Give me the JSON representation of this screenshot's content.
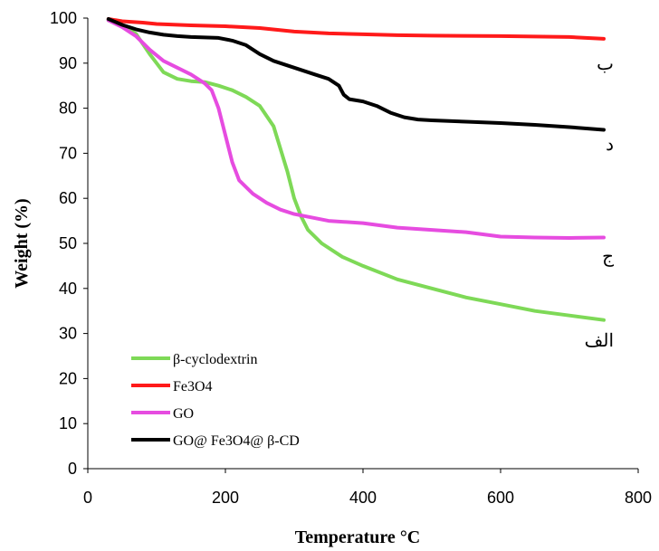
{
  "chart_data": {
    "type": "line",
    "xlabel": "Temperature °C",
    "ylabel": "Weight (%)",
    "xlim": [
      0,
      800
    ],
    "ylim": [
      0,
      100
    ],
    "xticks": [
      0,
      200,
      400,
      600,
      800
    ],
    "yticks": [
      0,
      10,
      20,
      30,
      40,
      50,
      60,
      70,
      80,
      90,
      100
    ],
    "grid": false,
    "legend_position": "bottom-left",
    "series": [
      {
        "name": "β-cyclodextrin",
        "color": "#7ED957",
        "end_label": "الف",
        "points": [
          [
            30,
            99.5
          ],
          [
            50,
            98.5
          ],
          [
            70,
            96.5
          ],
          [
            90,
            92
          ],
          [
            110,
            88
          ],
          [
            130,
            86.5
          ],
          [
            150,
            86
          ],
          [
            170,
            85.8
          ],
          [
            190,
            85
          ],
          [
            210,
            84
          ],
          [
            230,
            82.5
          ],
          [
            250,
            80.5
          ],
          [
            270,
            76
          ],
          [
            290,
            66
          ],
          [
            300,
            60
          ],
          [
            310,
            56
          ],
          [
            320,
            53
          ],
          [
            340,
            50
          ],
          [
            370,
            47
          ],
          [
            400,
            45
          ],
          [
            450,
            42
          ],
          [
            500,
            40
          ],
          [
            550,
            38
          ],
          [
            600,
            36.5
          ],
          [
            650,
            35
          ],
          [
            700,
            34
          ],
          [
            750,
            33
          ]
        ]
      },
      {
        "name": "Fe3O4",
        "color": "#FF1A1A",
        "end_label": "ب",
        "points": [
          [
            30,
            99.8
          ],
          [
            50,
            99.3
          ],
          [
            80,
            99
          ],
          [
            100,
            98.7
          ],
          [
            150,
            98.4
          ],
          [
            200,
            98.2
          ],
          [
            250,
            97.8
          ],
          [
            300,
            97
          ],
          [
            350,
            96.6
          ],
          [
            400,
            96.4
          ],
          [
            450,
            96.2
          ],
          [
            500,
            96.1
          ],
          [
            600,
            96
          ],
          [
            700,
            95.8
          ],
          [
            750,
            95.4
          ]
        ]
      },
      {
        "name": "GO",
        "color": "#E64CE0",
        "end_label": "ج",
        "points": [
          [
            30,
            99.5
          ],
          [
            50,
            98
          ],
          [
            70,
            96
          ],
          [
            90,
            93
          ],
          [
            110,
            90.5
          ],
          [
            130,
            89
          ],
          [
            150,
            87.5
          ],
          [
            170,
            85.5
          ],
          [
            180,
            84
          ],
          [
            190,
            80
          ],
          [
            200,
            74
          ],
          [
            210,
            68
          ],
          [
            220,
            64
          ],
          [
            240,
            61
          ],
          [
            260,
            59
          ],
          [
            280,
            57.5
          ],
          [
            300,
            56.5
          ],
          [
            350,
            55
          ],
          [
            400,
            54.5
          ],
          [
            450,
            53.5
          ],
          [
            500,
            53
          ],
          [
            550,
            52.5
          ],
          [
            600,
            51.5
          ],
          [
            650,
            51.3
          ],
          [
            700,
            51.2
          ],
          [
            750,
            51.3
          ]
        ]
      },
      {
        "name": "GO@ Fe3O4@ β-CD",
        "color": "#000000",
        "end_label": "د",
        "points": [
          [
            30,
            99.8
          ],
          [
            50,
            98.5
          ],
          [
            70,
            97.5
          ],
          [
            90,
            96.8
          ],
          [
            110,
            96.3
          ],
          [
            130,
            96
          ],
          [
            150,
            95.8
          ],
          [
            170,
            95.7
          ],
          [
            190,
            95.6
          ],
          [
            210,
            95
          ],
          [
            230,
            94
          ],
          [
            250,
            92
          ],
          [
            270,
            90.5
          ],
          [
            290,
            89.5
          ],
          [
            310,
            88.5
          ],
          [
            330,
            87.5
          ],
          [
            350,
            86.5
          ],
          [
            365,
            85
          ],
          [
            372,
            83
          ],
          [
            380,
            82
          ],
          [
            400,
            81.5
          ],
          [
            420,
            80.5
          ],
          [
            440,
            79
          ],
          [
            460,
            78
          ],
          [
            480,
            77.5
          ],
          [
            500,
            77.3
          ],
          [
            550,
            77
          ],
          [
            600,
            76.7
          ],
          [
            650,
            76.3
          ],
          [
            700,
            75.8
          ],
          [
            750,
            75.2
          ]
        ]
      }
    ]
  }
}
